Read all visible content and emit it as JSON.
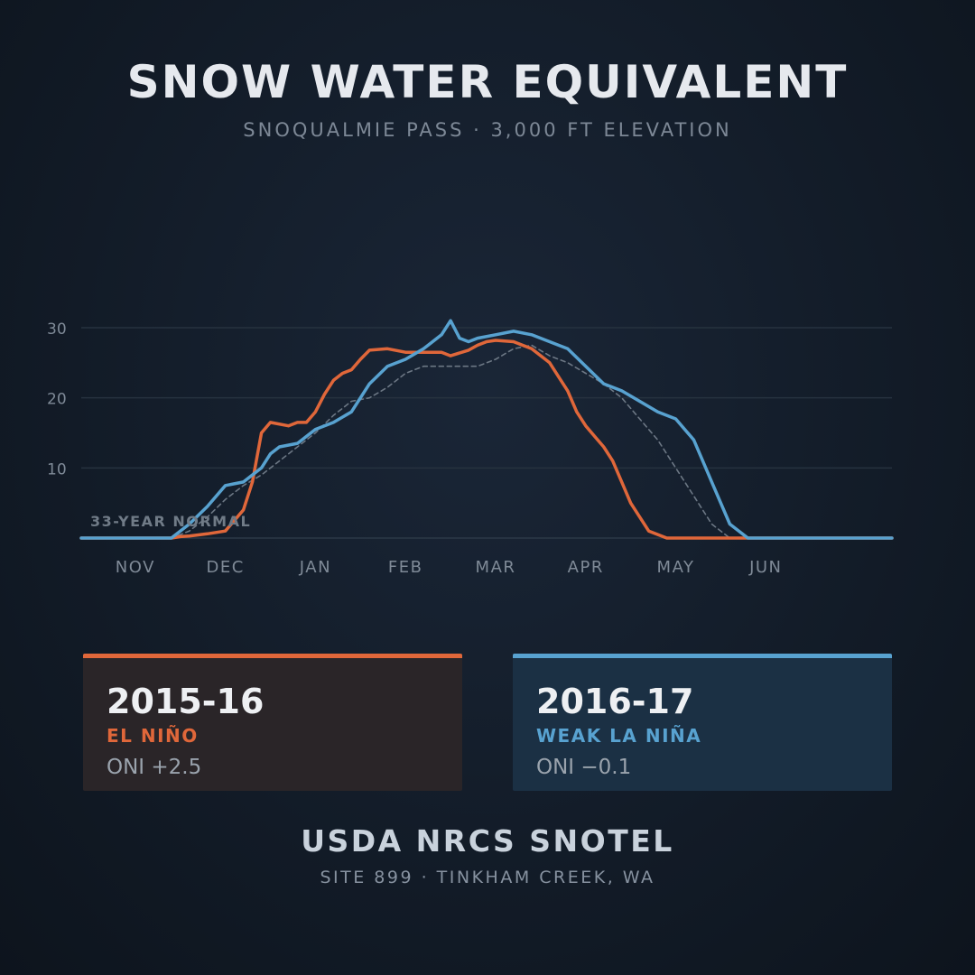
{
  "header": {
    "title": "SNOW WATER EQUIVALENT",
    "subtitle": "SNOQUALMIE PASS · 3,000 FT ELEVATION"
  },
  "chart_data": {
    "type": "line",
    "title": "SNOW WATER EQUIVALENT",
    "subtitle": "SNOQUALMIE PASS · 3,000 FT ELEVATION",
    "xlabel": "",
    "ylabel": "",
    "x_unit": "month",
    "x_ticks": [
      "NOV",
      "DEC",
      "JAN",
      "FEB",
      "MAR",
      "APR",
      "MAY",
      "JUN"
    ],
    "y_ticks": [
      10,
      20,
      30
    ],
    "xlim": [
      0,
      9
    ],
    "ylim": [
      0,
      30
    ],
    "grid": true,
    "annotation": "33-YEAR NORMAL",
    "colors": {
      "el_nino": "#e0673a",
      "la_nina": "#58a2d0",
      "normal": "#6c7784",
      "grid": "#26323f"
    },
    "series": [
      {
        "name": "2015-16",
        "style": "solid",
        "x": [
          0,
          1.0,
          1.1,
          1.2,
          1.4,
          1.6,
          1.8,
          1.9,
          2.0,
          2.1,
          2.3,
          2.4,
          2.5,
          2.6,
          2.7,
          2.8,
          2.9,
          3.0,
          3.1,
          3.2,
          3.4,
          3.6,
          3.8,
          4.0,
          4.1,
          4.3,
          4.4,
          4.5,
          4.6,
          4.8,
          5.0,
          5.2,
          5.3,
          5.4,
          5.5,
          5.6,
          5.7,
          5.8,
          5.9,
          6.0,
          6.1,
          6.2,
          6.3,
          6.5,
          6.6,
          6.8,
          6.9,
          7.0,
          7.2,
          7.6,
          9.0
        ],
        "values": [
          0,
          0,
          0.2,
          0.3,
          0.6,
          1.0,
          4.0,
          8.0,
          15.0,
          16.5,
          16.0,
          16.5,
          16.5,
          18.0,
          20.5,
          22.5,
          23.5,
          24.0,
          25.5,
          26.8,
          27.0,
          26.5,
          26.5,
          26.5,
          26.0,
          26.8,
          27.5,
          28.0,
          28.2,
          28.0,
          27.0,
          25.0,
          23.0,
          21.0,
          18.0,
          16.0,
          14.5,
          13.0,
          11.0,
          8.0,
          5.0,
          3.0,
          1.0,
          0,
          0,
          0,
          0,
          0,
          0,
          0,
          0
        ]
      },
      {
        "name": "2016-17",
        "style": "solid",
        "x": [
          0,
          1.0,
          1.2,
          1.4,
          1.6,
          1.8,
          2.0,
          2.1,
          2.2,
          2.4,
          2.6,
          2.8,
          3.0,
          3.2,
          3.4,
          3.6,
          3.8,
          4.0,
          4.1,
          4.2,
          4.3,
          4.4,
          4.6,
          4.8,
          5.0,
          5.2,
          5.4,
          5.6,
          5.8,
          6.0,
          6.2,
          6.4,
          6.6,
          6.8,
          7.0,
          7.2,
          7.4,
          7.6,
          7.8,
          9.0
        ],
        "values": [
          0,
          0,
          2.0,
          4.5,
          7.5,
          8.0,
          10.0,
          12.0,
          13.0,
          13.5,
          15.5,
          16.5,
          18.0,
          22.0,
          24.5,
          25.5,
          27.0,
          29.0,
          31.0,
          28.5,
          28.0,
          28.5,
          29.0,
          29.5,
          29.0,
          28.0,
          27.0,
          24.5,
          22.0,
          21.0,
          19.5,
          18.0,
          17.0,
          14.0,
          8.0,
          2.0,
          0,
          0,
          0,
          0
        ]
      },
      {
        "name": "33-YEAR NORMAL",
        "style": "dashed",
        "x": [
          0,
          1.0,
          1.2,
          1.4,
          1.6,
          1.8,
          2.0,
          2.2,
          2.4,
          2.6,
          2.8,
          3.0,
          3.2,
          3.4,
          3.6,
          3.8,
          4.0,
          4.2,
          4.4,
          4.6,
          4.8,
          5.0,
          5.2,
          5.4,
          5.6,
          5.8,
          6.0,
          6.2,
          6.4,
          6.6,
          6.8,
          7.0,
          7.2,
          9.0
        ],
        "values": [
          0,
          0,
          1.0,
          3.0,
          5.5,
          7.5,
          9.0,
          11.0,
          13.0,
          15.0,
          17.5,
          19.5,
          20.0,
          21.5,
          23.5,
          24.5,
          24.5,
          24.5,
          24.5,
          25.5,
          27.0,
          27.5,
          26.0,
          25.0,
          23.5,
          22.0,
          20.0,
          17.0,
          14.0,
          10.0,
          6.0,
          2.0,
          0,
          0
        ]
      }
    ]
  },
  "legend": {
    "cards": [
      {
        "season": "2015-16",
        "phase": "EL NIÑO",
        "oni": "ONI +2.5"
      },
      {
        "season": "2016-17",
        "phase": "WEAK LA NIÑA",
        "oni": "ONI −0.1"
      }
    ]
  },
  "footer": {
    "title": "USDA NRCS SNOTEL",
    "subtitle": "SITE 899 · TINKHAM CREEK, WA"
  }
}
